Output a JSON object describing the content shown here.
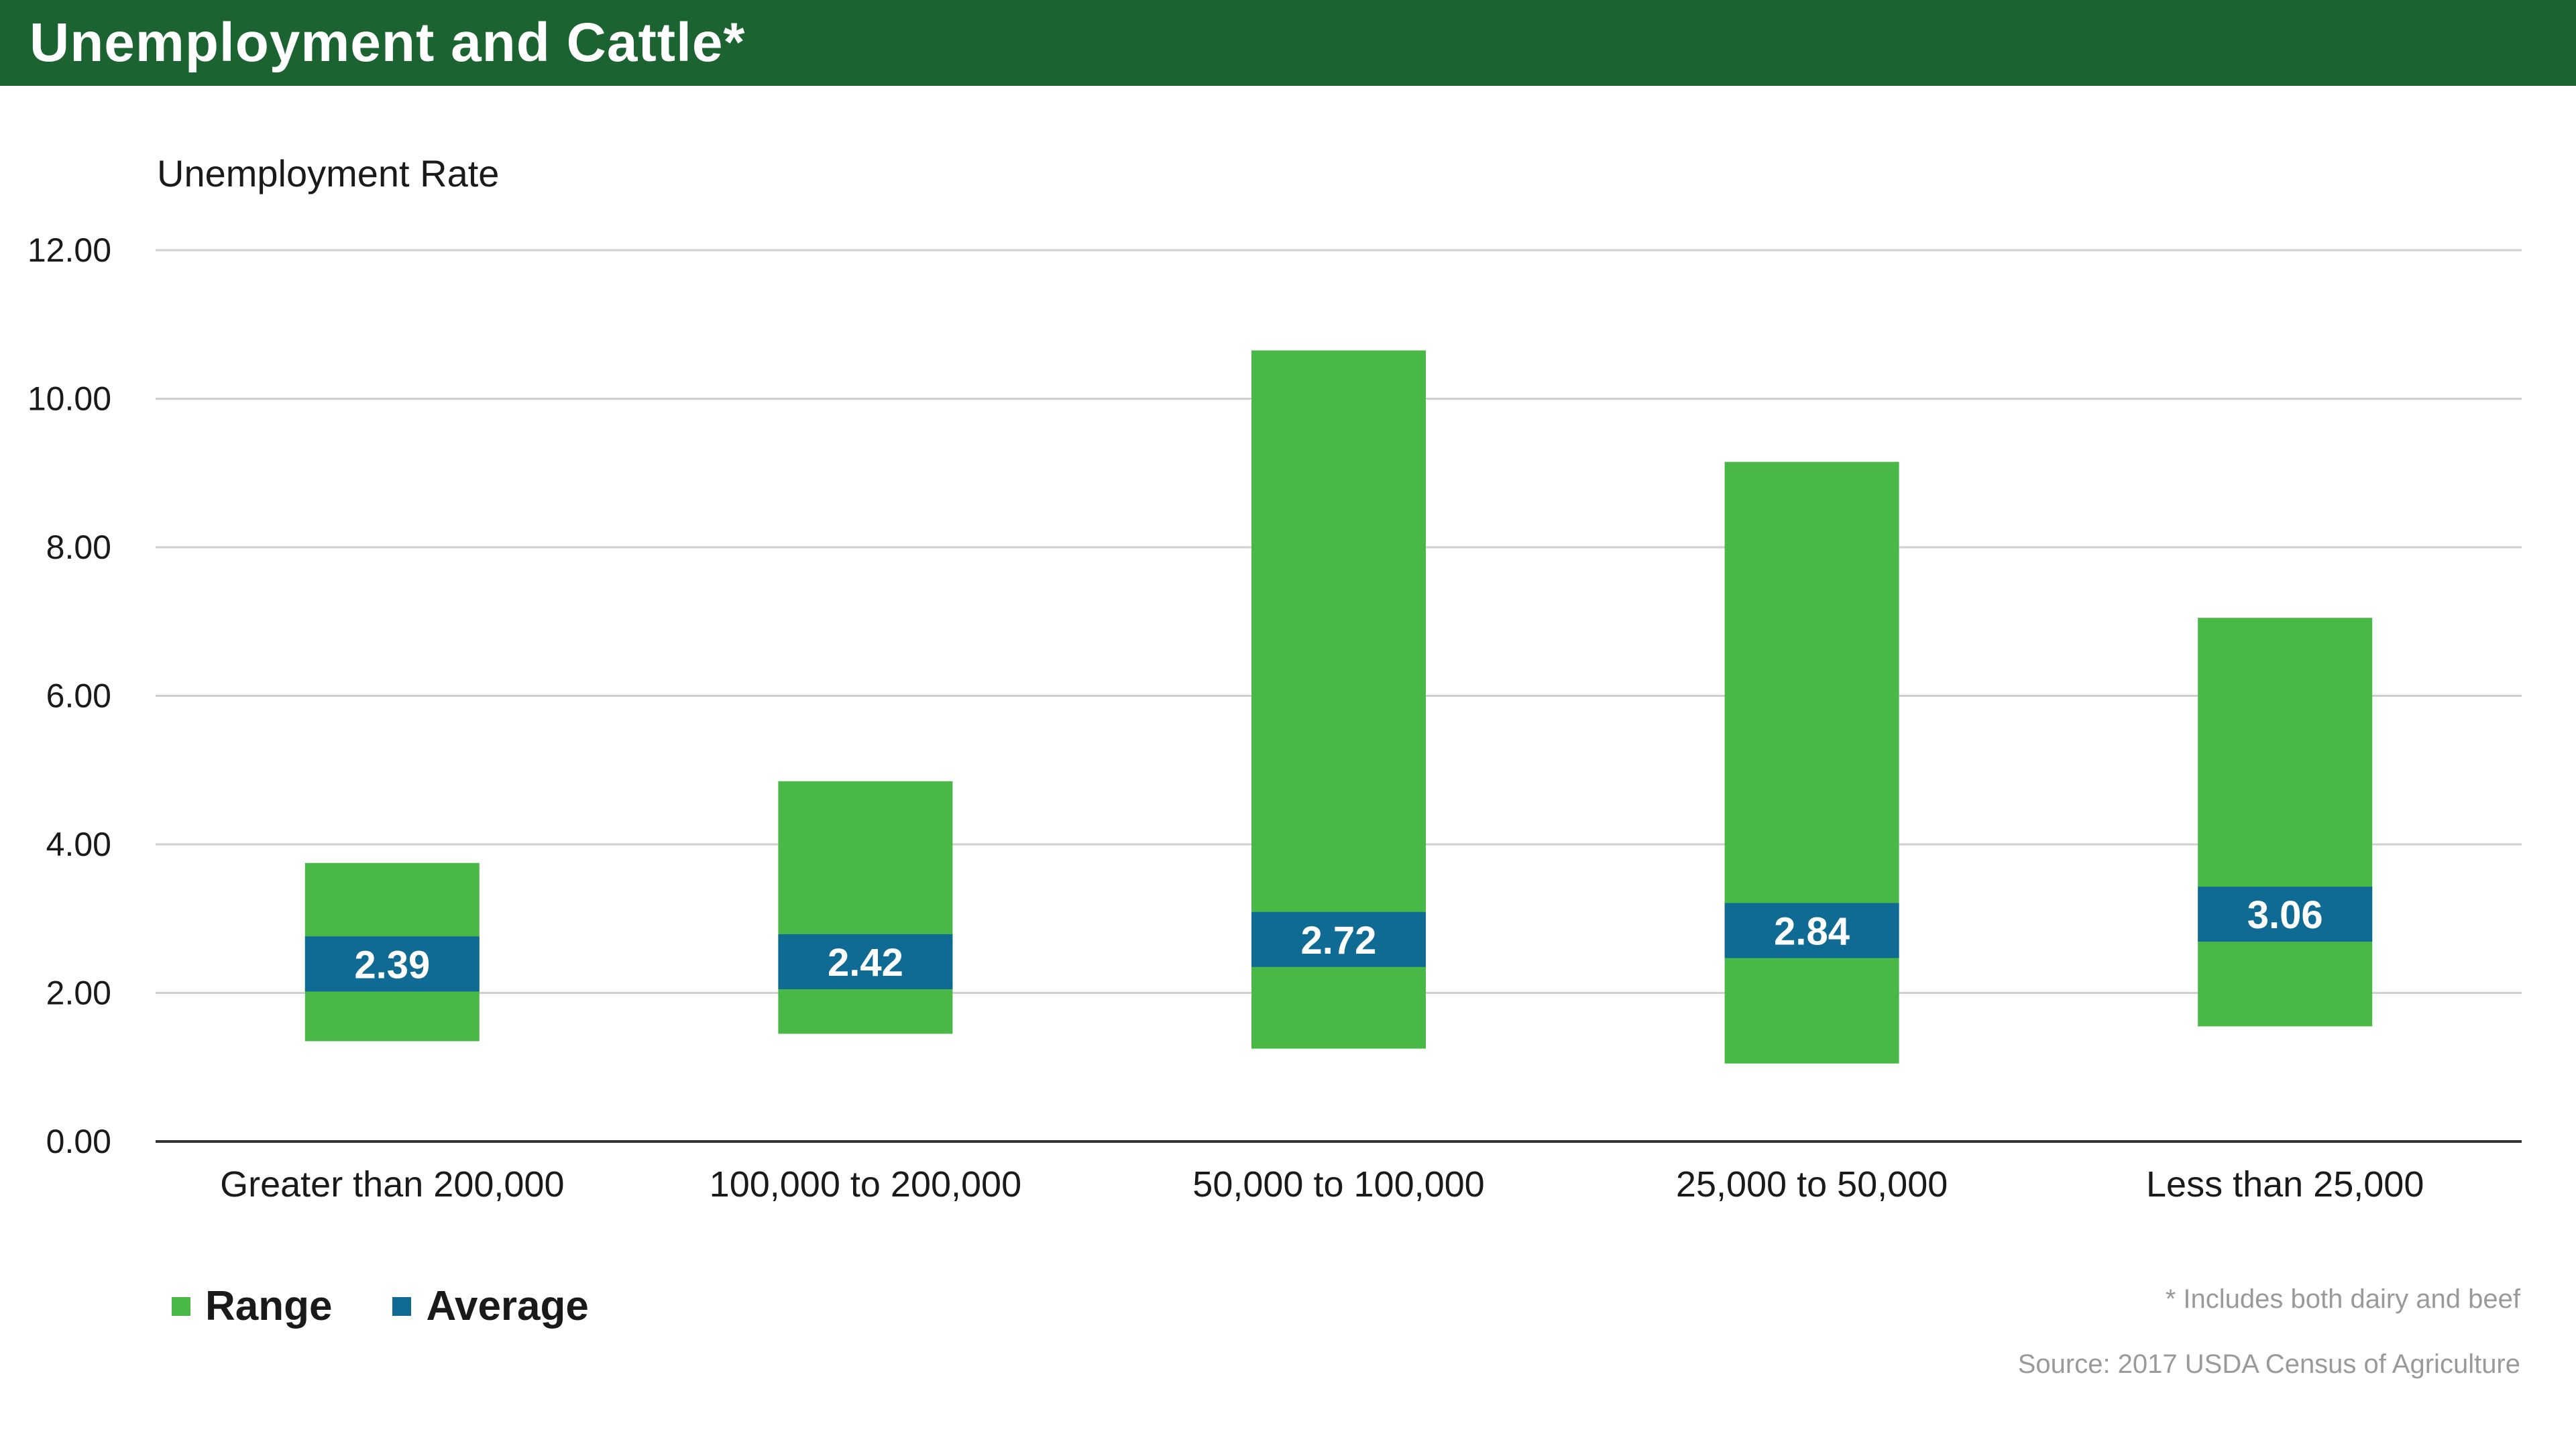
{
  "title": "Unemployment and Cattle*",
  "colors": {
    "title_bar": "#1b6330",
    "range": "#4ab847",
    "average": "#0f6b94",
    "grid": "#cfcfcf",
    "axis": "#333333"
  },
  "chart_data": {
    "type": "bar",
    "subtype": "floating-range-with-average-band",
    "ylabel": "Unemployment Rate",
    "xlabel": "",
    "ylim": [
      0,
      12
    ],
    "yticks": [
      "0.00",
      "2.00",
      "4.00",
      "6.00",
      "8.00",
      "10.00",
      "12.00"
    ],
    "grid": true,
    "legend_position": "bottom-left",
    "categories": [
      "Greater than 200,000",
      "100,000 to 200,000",
      "50,000 to 100,000",
      "25,000 to 50,000",
      "Less than 25,000"
    ],
    "series": [
      {
        "name": "Range",
        "low": [
          1.35,
          1.45,
          1.25,
          1.05,
          1.55
        ],
        "high": [
          3.75,
          4.85,
          10.65,
          9.15,
          7.05
        ]
      },
      {
        "name": "Average",
        "values": [
          2.39,
          2.42,
          2.72,
          2.84,
          3.06
        ],
        "labels": [
          "2.39",
          "2.42",
          "2.72",
          "2.84",
          "3.06"
        ]
      }
    ]
  },
  "legend": {
    "range_label": "Range",
    "average_label": "Average"
  },
  "footnotes": {
    "note": "*  Includes both dairy and beef",
    "source": "Source: 2017 USDA Census of Agriculture"
  }
}
